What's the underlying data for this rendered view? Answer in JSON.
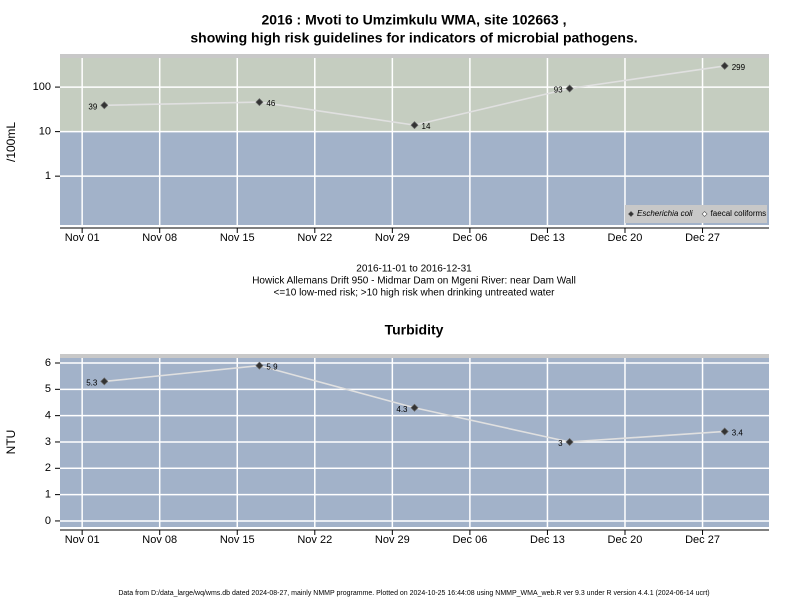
{
  "chart_data": [
    {
      "type": "line",
      "title": "2016 : Mvoti to Umzimkulu WMA, site 102663 ,",
      "subtitle": "showing high risk guidelines for indicators of microbial pathogens.",
      "ylabel": "/100mL",
      "log_y": true,
      "grid": true,
      "risk_threshold": 10,
      "band_colors": {
        "high": "#c5cdc0",
        "low": "#a2b2c9"
      },
      "x": [
        "2016-11-03",
        "2016-11-17",
        "2016-12-01",
        "2016-12-15",
        "2016-12-29"
      ],
      "series": [
        {
          "name": "Escherichia coli",
          "color": "#e0e0e0",
          "marker": "filled",
          "values": [
            39,
            46,
            14,
            93,
            299
          ]
        },
        {
          "name": "faecal coliforms",
          "color": "#e0e0e0",
          "marker": "open",
          "values": [
            null,
            null,
            null,
            null,
            null
          ]
        }
      ],
      "legend": "bottom-right",
      "xlim": [
        "2016-10-30",
        "2017-01-02"
      ],
      "xticks": [
        {
          "value": "2016-11-01",
          "label": "Nov 01"
        },
        {
          "value": "2016-11-08",
          "label": "Nov 08"
        },
        {
          "value": "2016-11-15",
          "label": "Nov 15"
        },
        {
          "value": "2016-11-22",
          "label": "Nov 22"
        },
        {
          "value": "2016-11-29",
          "label": "Nov 29"
        },
        {
          "value": "2016-12-06",
          "label": "Dec 06"
        },
        {
          "value": "2016-12-13",
          "label": "Dec 13"
        },
        {
          "value": "2016-12-20",
          "label": "Dec 20"
        },
        {
          "value": "2016-12-27",
          "label": "Dec 27"
        }
      ],
      "ylim": [
        0.08,
        450
      ],
      "yticks": [
        1,
        10,
        100
      ],
      "caption": [
        "2016-11-01 to 2016-12-31",
        "Howick Allemans Drift 950 - Midmar Dam on Mgeni River: near Dam Wall",
        "<=10 low-med risk; >10 high risk when drinking untreated water"
      ]
    },
    {
      "type": "line",
      "title": "Turbidity",
      "ylabel": "NTU",
      "log_y": false,
      "grid": true,
      "band_colors": {
        "low": "#a2b2c9"
      },
      "x": [
        "2016-11-03",
        "2016-11-17",
        "2016-12-01",
        "2016-12-15",
        "2016-12-29"
      ],
      "series": [
        {
          "color": "#e0e0e0",
          "marker": "filled",
          "values": [
            5.3,
            5.9,
            4.3,
            3,
            3.4
          ]
        }
      ],
      "xlim": [
        "2016-10-30",
        "2017-01-02"
      ],
      "xticks": [
        {
          "value": "2016-11-01",
          "label": "Nov 01"
        },
        {
          "value": "2016-11-08",
          "label": "Nov 08"
        },
        {
          "value": "2016-11-15",
          "label": "Nov 15"
        },
        {
          "value": "2016-11-22",
          "label": "Nov 22"
        },
        {
          "value": "2016-11-29",
          "label": "Nov 29"
        },
        {
          "value": "2016-12-06",
          "label": "Dec 06"
        },
        {
          "value": "2016-12-13",
          "label": "Dec 13"
        },
        {
          "value": "2016-12-20",
          "label": "Dec 20"
        },
        {
          "value": "2016-12-27",
          "label": "Dec 27"
        }
      ],
      "ylim": [
        -0.23,
        6.19
      ],
      "yticks": [
        0,
        1,
        2,
        3,
        4,
        5,
        6
      ]
    }
  ],
  "footer": "Data from D:/data_large/wq/wms.db dated 2024-08-27, mainly NMMP programme. Plotted on 2024-10-25 16:44:08 using NMMP_WMA_web.R ver 9.3 under R version 4.4.1 (2024-06-14 ucrt)"
}
